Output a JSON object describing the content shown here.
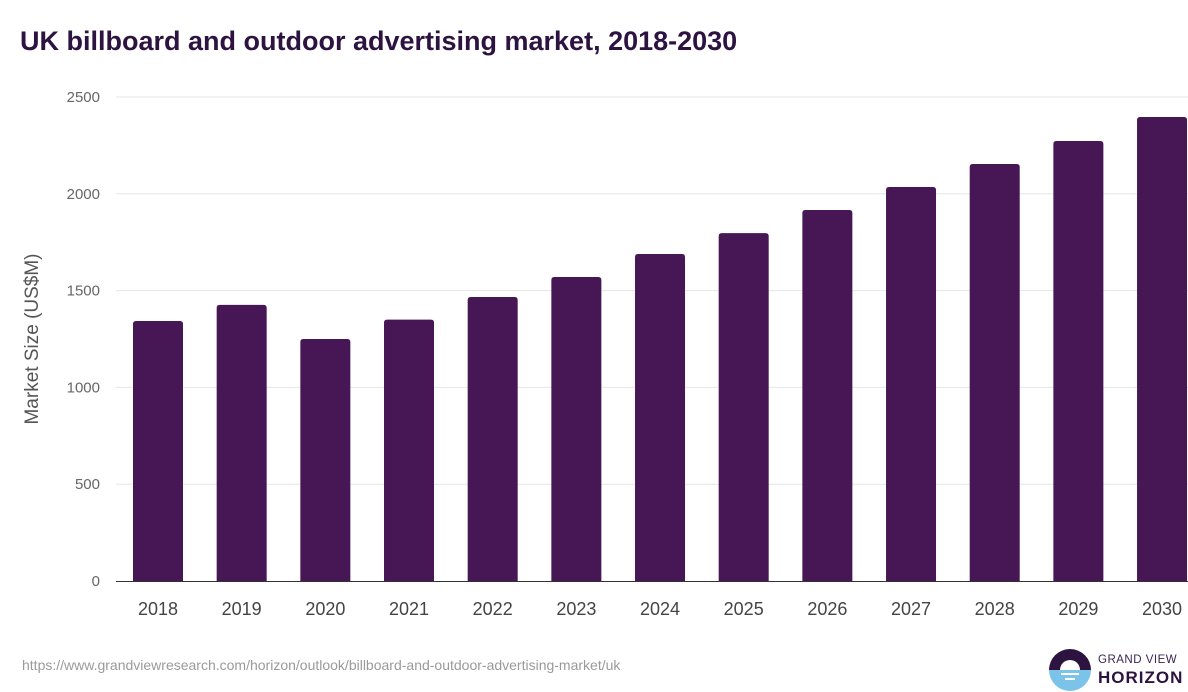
{
  "title": "UK billboard and outdoor advertising market, 2018-2030",
  "source_url": "https://www.grandviewresearch.com/horizon/outlook/billboard-and-outdoor-advertising-market/uk",
  "logo": {
    "line1": "GRAND VIEW",
    "line2": "HORIZON"
  },
  "colors": {
    "bar": "#471655",
    "title": "#2c1340",
    "grid": "#e6e6e6"
  },
  "chart_data": {
    "type": "bar",
    "title": "UK billboard and outdoor advertising market, 2018-2030",
    "xlabel": "",
    "ylabel": "Market Size (US$M)",
    "ylim": [
      0,
      2500
    ],
    "yticks": [
      0,
      500,
      1000,
      1500,
      2000,
      2500
    ],
    "grid": true,
    "categories": [
      "2018",
      "2019",
      "2020",
      "2021",
      "2022",
      "2023",
      "2024",
      "2025",
      "2026",
      "2027",
      "2028",
      "2029",
      "2030"
    ],
    "values": [
      1343,
      1426,
      1250,
      1350,
      1467,
      1570,
      1689,
      1797,
      1916,
      2035,
      2154,
      2273,
      2397
    ]
  }
}
